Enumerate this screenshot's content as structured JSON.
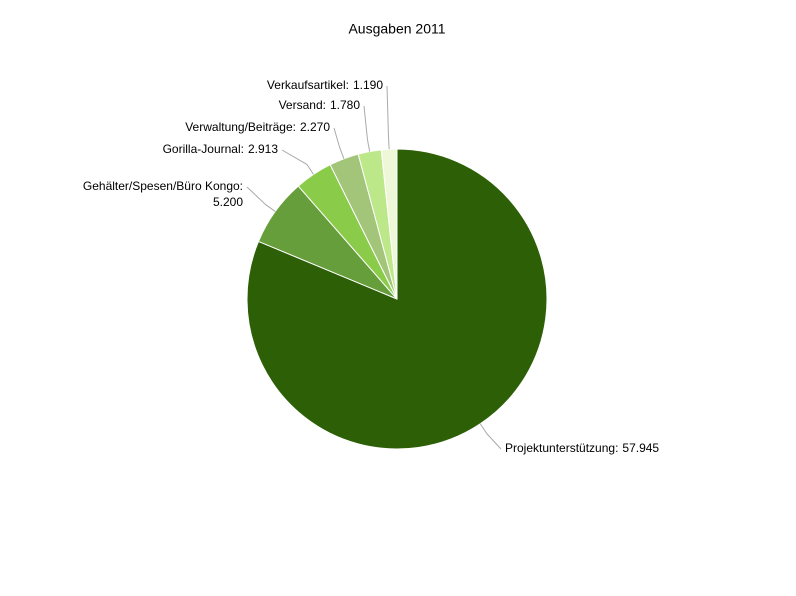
{
  "chart_data": {
    "type": "pie",
    "title": "Ausgaben 2011",
    "categories": [
      "Projektunterstützung:",
      "Gehälter/Spesen/Büro Kongo:",
      "Gorilla-Journal:",
      "Verwaltung/Beiträge:",
      "Versand:",
      "Verkaufsartikel:"
    ],
    "values": [
      57945,
      5200,
      2913,
      2270,
      1780,
      1190
    ],
    "value_labels": [
      "57.945",
      "5.200",
      "2.913",
      "2.270",
      "1.780",
      "1.190"
    ],
    "colors": [
      "#2d5f06",
      "#659e3a",
      "#8bcb4a",
      "#a2c57a",
      "#bde88a",
      "#eef8d8"
    ]
  }
}
